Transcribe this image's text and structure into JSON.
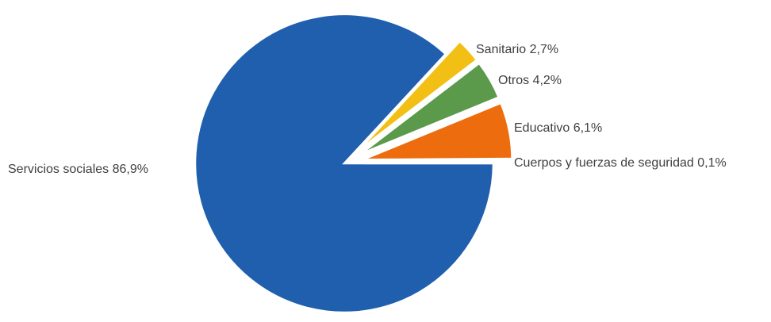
{
  "chart_data": {
    "type": "pie",
    "title": "",
    "slices": [
      {
        "label": "Servicios sociales 86,9%",
        "name": "Servicios sociales",
        "value": 86.9,
        "color": "#1f5fad"
      },
      {
        "label": "Sanitario 2,7%",
        "name": "Sanitario",
        "value": 2.7,
        "color": "#f2c014"
      },
      {
        "label": "Otros 4,2%",
        "name": "Otros",
        "value": 4.2,
        "color": "#5c9a4b"
      },
      {
        "label": "Educativo 6,1%",
        "name": "Educativo",
        "value": 6.1,
        "color": "#ed6c0d"
      },
      {
        "label": "Cuerpos y fuerzas de seguridad 0,1%",
        "name": "Cuerpos y fuerzas de seguridad",
        "value": 0.1,
        "color": "#c0392b"
      }
    ],
    "legend": "none",
    "exploded": [
      "Sanitario",
      "Otros",
      "Educativo",
      "Cuerpos y fuerzas de seguridad"
    ]
  }
}
